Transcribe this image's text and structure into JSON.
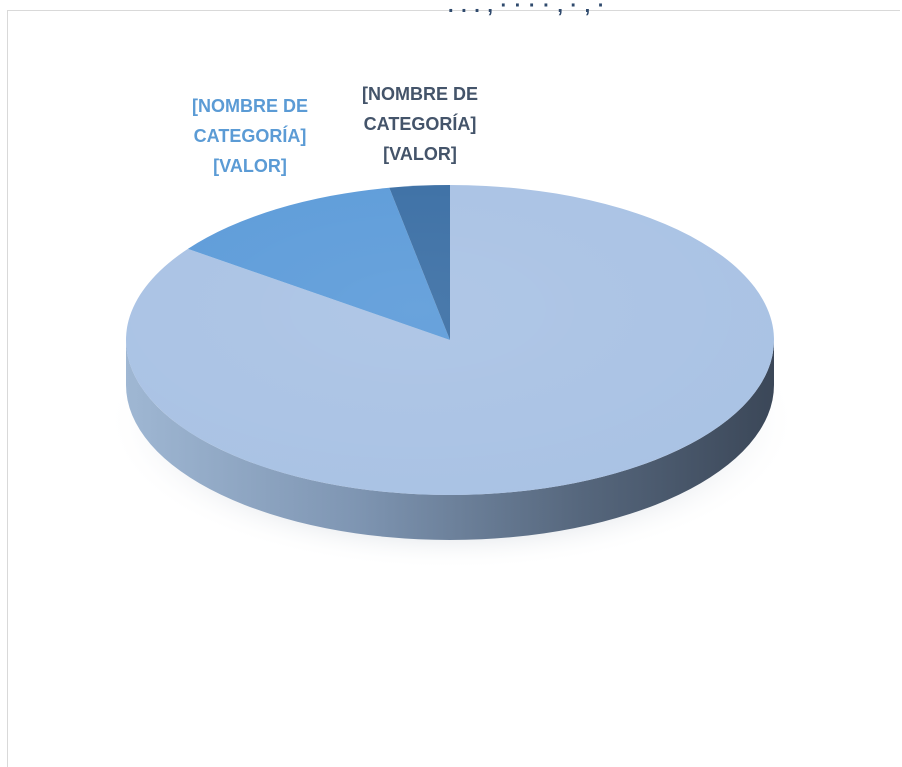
{
  "chart_data": {
    "type": "pie",
    "title": "",
    "series": [
      {
        "values": [
          85,
          12,
          3
        ]
      }
    ],
    "slices": [
      {
        "value": 85,
        "color": "#a9c2e4",
        "label": ""
      },
      {
        "value": 12,
        "color": "#5c9bd9",
        "label": "[NOMBRE DE CATEGORÍA] [VALOR]",
        "label_color": "#5b9bd5"
      },
      {
        "value": 3,
        "color": "#3a6ea4",
        "label": "[NOMBRE DE CATEGORÍA] [VALOR]",
        "label_color": "#44546a"
      }
    ],
    "legend": "none",
    "style": "3d"
  },
  "colors": {
    "rim_light": "#9eb6d2",
    "rim_dark": "#3c4a5c",
    "shadow": "#d8dde4",
    "frame_border": "#d9d9d9"
  }
}
